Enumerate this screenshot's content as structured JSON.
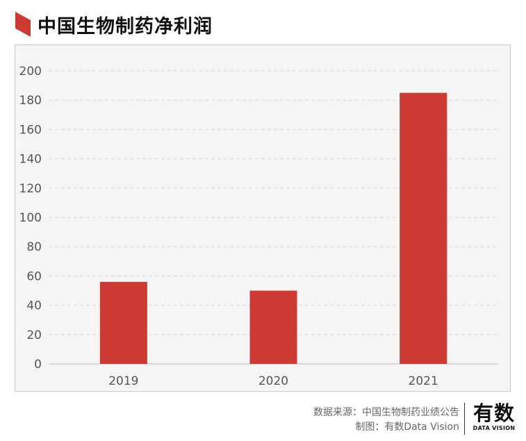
{
  "header": {
    "title": "中国生物制药净利润"
  },
  "chart_data": {
    "type": "bar",
    "title": "中国生物制药净利润",
    "categories": [
      "2019",
      "2020",
      "2021"
    ],
    "values": [
      56,
      50,
      185
    ],
    "ylim": [
      0,
      200
    ],
    "yticks": [
      0,
      20,
      40,
      60,
      80,
      100,
      120,
      140,
      160,
      180,
      200
    ],
    "xlabel": "",
    "ylabel": "",
    "grid": true,
    "bar_color": "#cc3a33"
  },
  "footer": {
    "source": "数据来源：中国生物制药业绩公告",
    "credit": "制图：有数Data Vision"
  },
  "logo": {
    "main": "有数",
    "sub": "DATA VISION"
  },
  "colors": {
    "accent": "#cc3a33",
    "panel_bg": "#f5f5f5",
    "grid": "#d6d6d6"
  }
}
